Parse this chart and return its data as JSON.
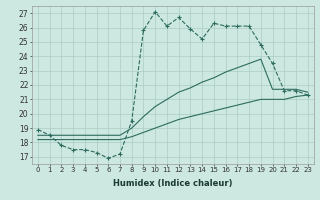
{
  "xlabel": "Humidex (Indice chaleur)",
  "ylabel": "",
  "background_color": "#cce8e0",
  "grid_color": "#aaccC4",
  "line_color": "#2d6b5e",
  "xlim": [
    -0.5,
    23.5
  ],
  "ylim": [
    16.5,
    27.5
  ],
  "yticks": [
    17,
    18,
    19,
    20,
    21,
    22,
    23,
    24,
    25,
    26,
    27
  ],
  "xticks": [
    0,
    1,
    2,
    3,
    4,
    5,
    6,
    7,
    8,
    9,
    10,
    11,
    12,
    13,
    14,
    15,
    16,
    17,
    18,
    19,
    20,
    21,
    22,
    23
  ],
  "series_dashed": {
    "x": [
      0,
      1,
      2,
      3,
      4,
      5,
      6,
      7,
      8,
      9,
      10,
      11,
      12,
      13,
      14,
      15,
      16,
      17,
      18,
      19,
      20,
      21,
      22,
      23
    ],
    "y": [
      18.9,
      18.5,
      17.8,
      17.5,
      17.5,
      17.3,
      16.9,
      17.2,
      19.5,
      25.8,
      27.1,
      26.1,
      26.7,
      25.9,
      25.2,
      26.3,
      26.1,
      26.1,
      26.1,
      24.8,
      23.5,
      21.6,
      21.6,
      21.3
    ]
  },
  "series_solid1": {
    "x": [
      0,
      1,
      2,
      3,
      4,
      5,
      6,
      7,
      8,
      9,
      10,
      11,
      12,
      13,
      14,
      15,
      16,
      17,
      18,
      19,
      20,
      21,
      22,
      23
    ],
    "y": [
      18.5,
      18.5,
      18.5,
      18.5,
      18.5,
      18.5,
      18.5,
      18.5,
      19.0,
      19.8,
      20.5,
      21.0,
      21.5,
      21.8,
      22.2,
      22.5,
      22.9,
      23.2,
      23.5,
      23.8,
      21.7,
      21.7,
      21.7,
      21.5
    ]
  },
  "series_solid2": {
    "x": [
      0,
      1,
      2,
      3,
      4,
      5,
      6,
      7,
      8,
      9,
      10,
      11,
      12,
      13,
      14,
      15,
      16,
      17,
      18,
      19,
      20,
      21,
      22,
      23
    ],
    "y": [
      18.2,
      18.2,
      18.2,
      18.2,
      18.2,
      18.2,
      18.2,
      18.2,
      18.4,
      18.7,
      19.0,
      19.3,
      19.6,
      19.8,
      20.0,
      20.2,
      20.4,
      20.6,
      20.8,
      21.0,
      21.0,
      21.0,
      21.2,
      21.3
    ]
  }
}
